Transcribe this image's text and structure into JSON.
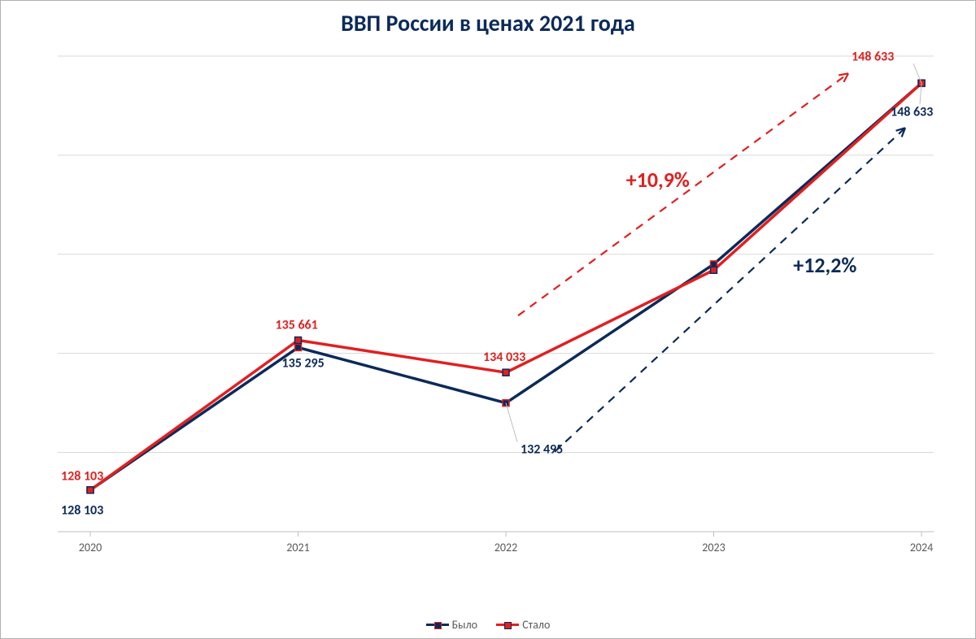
{
  "chart": {
    "type": "line",
    "title": "ВВП России в ценах 2021 года",
    "title_fontsize": 28,
    "title_color": "#0b2a5a",
    "background_color": "#ffffff",
    "plot_border_color": "#b0b0b0",
    "grid_color": "#d9d9d9",
    "axis_color": "#bfbfbf",
    "categories": [
      "2020",
      "2021",
      "2022",
      "2023",
      "2024"
    ],
    "ylim": [
      126000,
      150000
    ],
    "ytick_step": 5000,
    "series": [
      {
        "name": "Было",
        "color": "#0b2a5a",
        "line_width": 3.5,
        "marker_color": "#0b2a5a",
        "marker_border": "#e02020",
        "values": [
          128103,
          135295,
          132495,
          139500,
          148633
        ],
        "data_labels": [
          "128 103",
          "135 295",
          "132 495",
          "",
          "148 633"
        ],
        "label_color": "#0b2a5a"
      },
      {
        "name": "Стало",
        "color": "#e02020",
        "line_width": 3.5,
        "marker_color": "#e02020",
        "marker_border": "#0b2a5a",
        "values": [
          128103,
          135661,
          134033,
          139200,
          148633
        ],
        "data_labels": [
          "128 103",
          "135 661",
          "134 033",
          "",
          "148 633"
        ],
        "label_color": "#e02020"
      }
    ],
    "annotations": {
      "pct_red": {
        "text": "+10,9%",
        "color": "#e02020"
      },
      "pct_blue": {
        "text": "+12,2%",
        "color": "#0b2a5a"
      }
    },
    "legend": {
      "items": [
        {
          "label": "Было",
          "color": "#0b2a5a",
          "marker_border": "#e02020"
        },
        {
          "label": "Стало",
          "color": "#e02020",
          "marker_border": "#0b2a5a"
        }
      ],
      "fontsize": 14,
      "text_color": "#595959"
    },
    "tick_label_fontsize": 14,
    "tick_label_color": "#595959",
    "data_label_fontsize": 16
  }
}
